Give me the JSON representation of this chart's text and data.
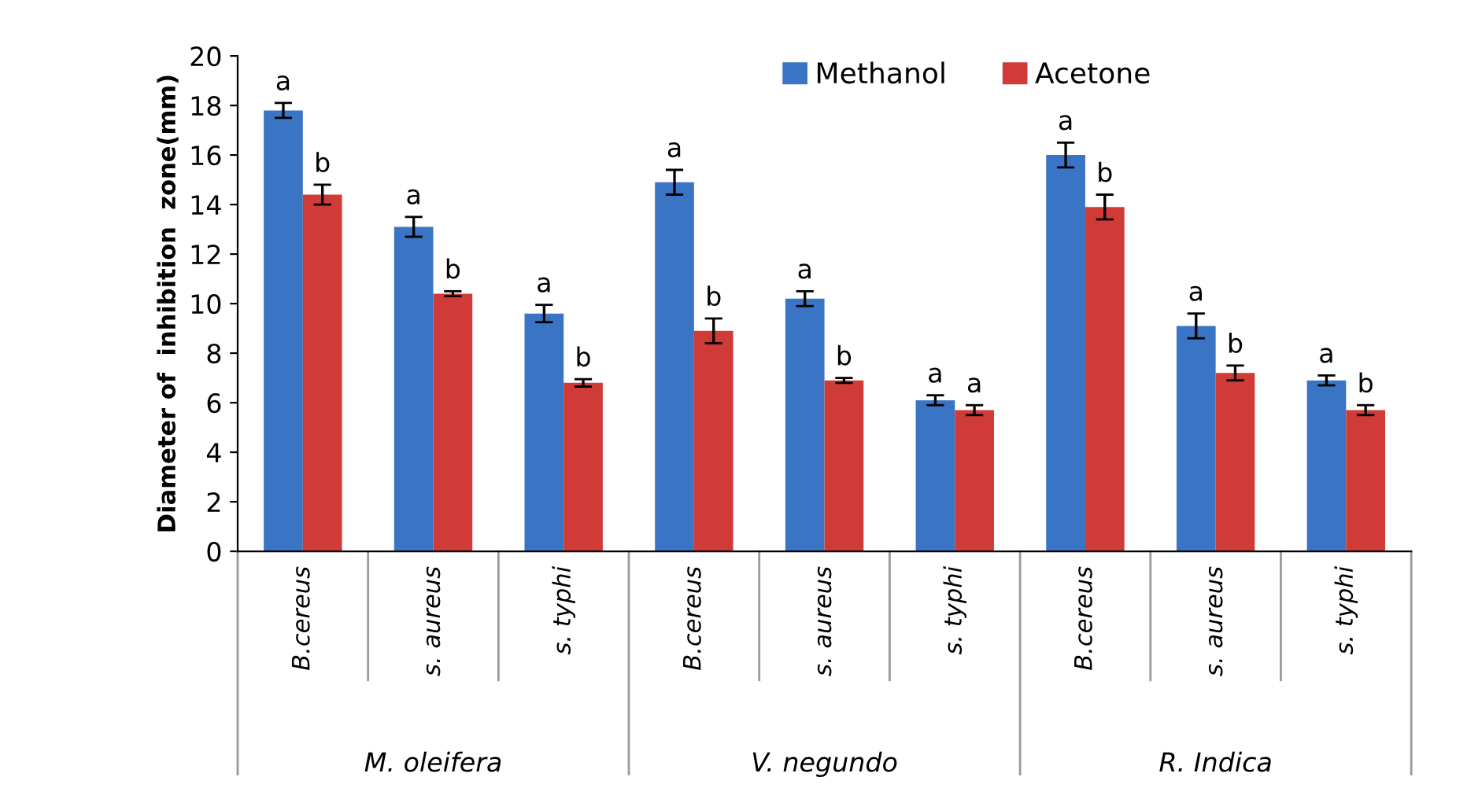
{
  "chart_data": {
    "type": "bar",
    "ylabel": "Diameter of  inhibition  zone(mm)",
    "categories": [
      "B.cereus",
      "s. aureus",
      "s. typhi",
      "B.cereus",
      "s. aureus",
      "s. typhi",
      "B.cereus",
      "s. aureus",
      "s. typhi"
    ],
    "series": [
      {
        "name": "Methanol",
        "color": "#3a74c4",
        "values": [
          17.8,
          13.1,
          9.6,
          14.9,
          10.2,
          6.1,
          16.0,
          9.1,
          6.9
        ],
        "errors": [
          0.3,
          0.4,
          0.35,
          0.5,
          0.3,
          0.2,
          0.5,
          0.5,
          0.2
        ],
        "value_labels": [
          "a",
          "a",
          "a",
          "a",
          "a",
          "a",
          "a",
          "a",
          "a"
        ]
      },
      {
        "name": "Acetone",
        "color": "#d03a37",
        "values": [
          14.4,
          10.4,
          6.8,
          8.9,
          6.9,
          5.7,
          13.9,
          7.2,
          5.7
        ],
        "errors": [
          0.4,
          0.1,
          0.15,
          0.5,
          0.1,
          0.2,
          0.5,
          0.3,
          0.2
        ],
        "value_labels": [
          "b",
          "b",
          "b",
          "b",
          "b",
          "a",
          "b",
          "b",
          "b"
        ]
      }
    ],
    "annotations": [
      "M. oleifera",
      "V. negundo",
      "R. Indica"
    ],
    "ylim": [
      0,
      20
    ],
    "yticks": [
      0,
      2,
      4,
      6,
      8,
      10,
      12,
      14,
      16,
      18,
      20
    ],
    "legend": "top right"
  }
}
